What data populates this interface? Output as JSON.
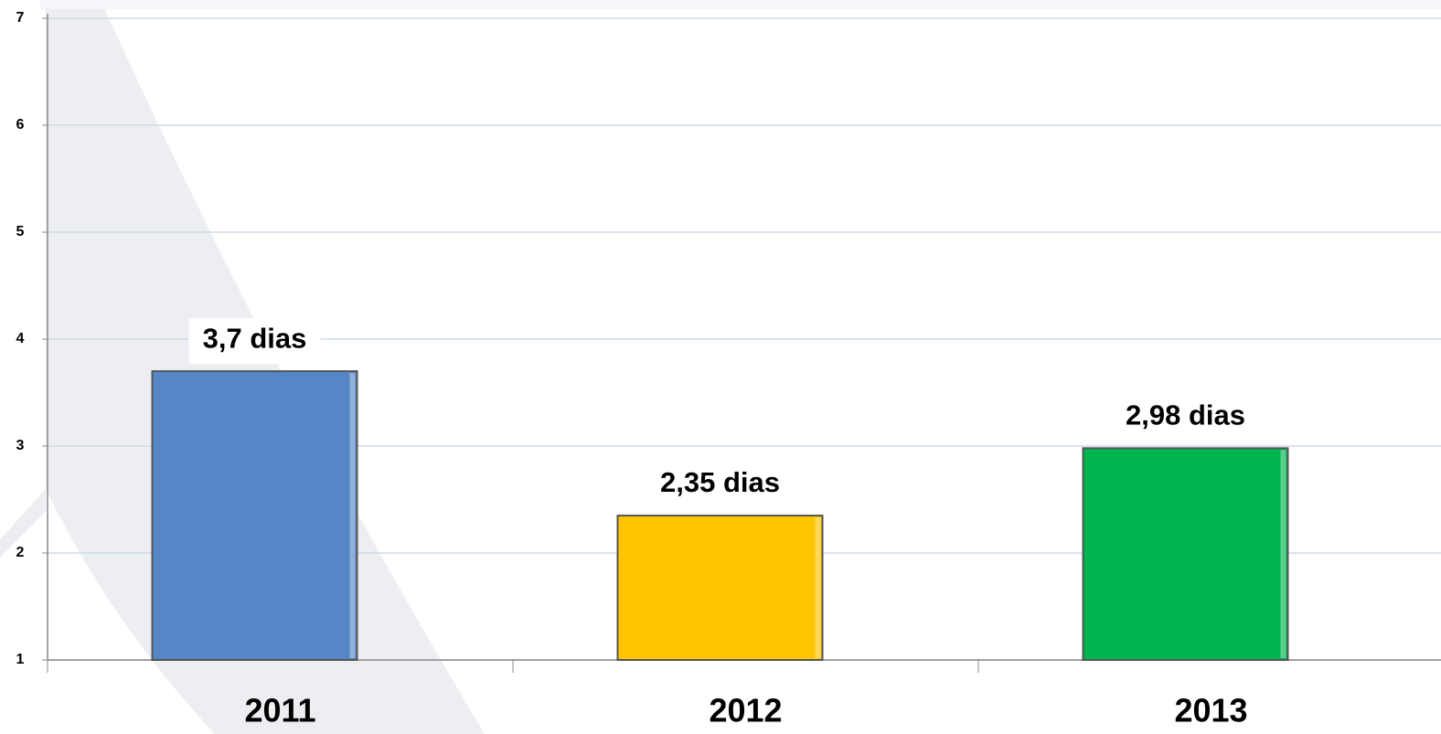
{
  "chart_data": {
    "type": "bar",
    "categories": [
      "2011",
      "2012",
      "2013"
    ],
    "values": [
      3.7,
      2.35,
      2.98
    ],
    "value_labels": [
      "3,7 dias",
      "2,35 dias",
      "2,98 dias"
    ],
    "colors": [
      "#5587c6",
      "#ffc600",
      "#00b550"
    ],
    "ylim": [
      1,
      7
    ],
    "yticks": [
      1,
      2,
      3,
      4,
      5,
      6,
      7
    ],
    "grid": true
  }
}
